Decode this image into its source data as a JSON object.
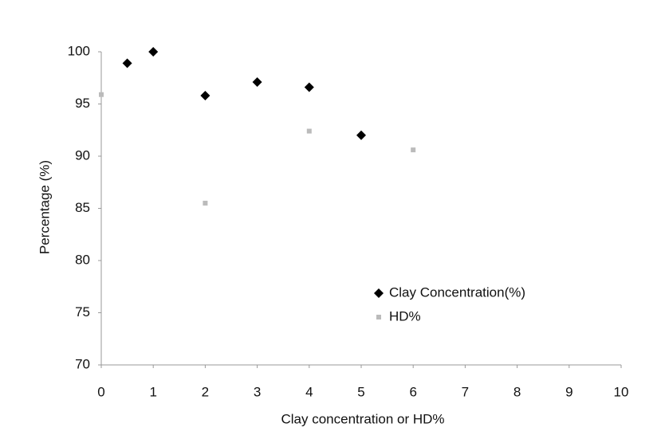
{
  "chart_data": {
    "type": "scatter",
    "x_label": "Clay concentration or HD%",
    "y_label": "Percentage (%)",
    "xlim": [
      0,
      10
    ],
    "xticks": [
      0,
      1,
      2,
      3,
      4,
      5,
      6,
      7,
      8,
      9,
      10
    ],
    "ylim": [
      70,
      100
    ],
    "yticks": [
      70,
      75,
      80,
      85,
      90,
      95,
      100
    ],
    "grid": false,
    "series": [
      {
        "name": "Clay Concentration(%)",
        "color": "#000000",
        "marker": "diamond",
        "x": [
          0.5,
          1,
          2,
          3,
          4,
          5
        ],
        "values": [
          98.9,
          100,
          95.8,
          97.1,
          96.6,
          92.0
        ]
      },
      {
        "name": "HD%",
        "color": "#bbbbbb",
        "marker": "square",
        "x": [
          0,
          2,
          4,
          6
        ],
        "values": [
          95.9,
          85.5,
          92.4,
          90.6
        ]
      }
    ]
  }
}
